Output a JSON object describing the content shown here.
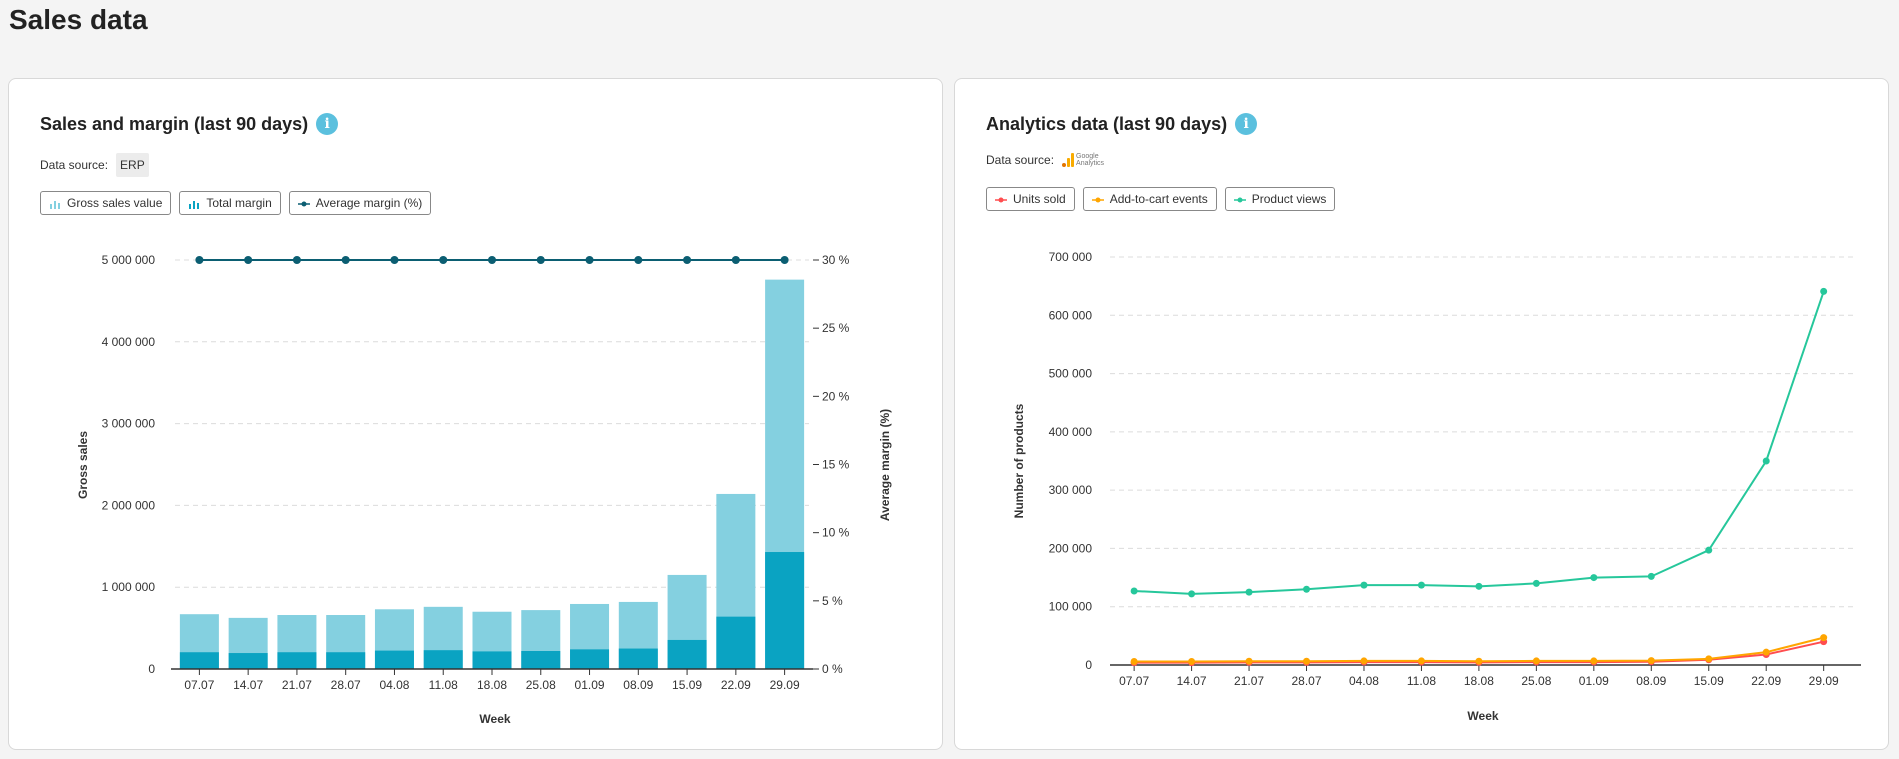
{
  "page": {
    "title": "Sales data"
  },
  "panels": {
    "sales": {
      "title": "Sales and margin (last 90 days)",
      "info_icon": "info-icon",
      "source_label": "Data source:",
      "source_value": "ERP",
      "legend": [
        {
          "label": "Gross sales value",
          "icon": "bar-chart-icon",
          "color": "#84d0e0"
        },
        {
          "label": "Total margin",
          "icon": "bar-chart-icon",
          "color": "#0aa3c2"
        },
        {
          "label": "Average margin (%)",
          "icon": "line-marker-icon",
          "color": "#0b5e72"
        }
      ]
    },
    "analytics": {
      "title": "Analytics data (last 90 days)",
      "info_icon": "info-icon",
      "source_label": "Data source:",
      "source_logo": {
        "line1": "Google",
        "line2": "Analytics"
      },
      "legend": [
        {
          "label": "Units sold",
          "icon": "line-marker-icon",
          "color": "#ff4d4f"
        },
        {
          "label": "Add-to-cart events",
          "icon": "line-marker-icon",
          "color": "#ffa500"
        },
        {
          "label": "Product views",
          "icon": "line-marker-icon",
          "color": "#26c79b"
        }
      ]
    }
  },
  "chart_data": [
    {
      "type": "bar",
      "title": "Sales and margin (last 90 days)",
      "xlabel": "Week",
      "ylabel": "Gross sales",
      "y2label": "Average margin (%)",
      "categories": [
        "07.07",
        "14.07",
        "21.07",
        "28.07",
        "04.08",
        "11.08",
        "18.08",
        "25.08",
        "01.09",
        "08.09",
        "15.09",
        "22.09",
        "29.09"
      ],
      "ylim": [
        0,
        5000000
      ],
      "yticks": [
        0,
        1000000,
        2000000,
        3000000,
        4000000,
        5000000
      ],
      "ytick_labels": [
        "0",
        "1 000 000",
        "2 000 000",
        "3 000 000",
        "4 000 000",
        "5 000 000"
      ],
      "y2lim": [
        0,
        30
      ],
      "y2ticks": [
        0,
        5,
        10,
        15,
        20,
        25,
        30
      ],
      "y2tick_labels": [
        "0 %",
        "5 %",
        "10 %",
        "15 %",
        "20 %",
        "25 %",
        "30 %"
      ],
      "grid": true,
      "series": [
        {
          "name": "Gross sales value",
          "kind": "bar",
          "axis": "left",
          "color": "#84d0e0",
          "values": [
            670000,
            625000,
            660000,
            660000,
            730000,
            760000,
            700000,
            720000,
            795000,
            820000,
            1150000,
            2140000,
            4760000
          ]
        },
        {
          "name": "Total margin",
          "kind": "bar",
          "axis": "left",
          "color": "#0aa3c2",
          "values": [
            205000,
            195000,
            205000,
            205000,
            225000,
            230000,
            215000,
            220000,
            240000,
            250000,
            355000,
            640000,
            1430000
          ]
        },
        {
          "name": "Average margin (%)",
          "kind": "line",
          "axis": "right",
          "color": "#0b5e72",
          "values": [
            30,
            30,
            30,
            30,
            30,
            30,
            30,
            30,
            30,
            30,
            30,
            30,
            30
          ]
        }
      ],
      "legend": "top-left"
    },
    {
      "type": "line",
      "title": "Analytics data (last 90 days)",
      "xlabel": "Week",
      "ylabel": "Number of products",
      "categories": [
        "07.07",
        "14.07",
        "21.07",
        "28.07",
        "04.08",
        "11.08",
        "18.08",
        "25.08",
        "01.09",
        "08.09",
        "15.09",
        "22.09",
        "29.09"
      ],
      "ylim": [
        0,
        700000
      ],
      "yticks": [
        0,
        100000,
        200000,
        300000,
        400000,
        500000,
        600000,
        700000
      ],
      "ytick_labels": [
        "0",
        "100 000",
        "200 000",
        "300 000",
        "400 000",
        "500 000",
        "600 000",
        "700 000"
      ],
      "grid": true,
      "series": [
        {
          "name": "Units sold",
          "color": "#ff4d4f",
          "values": [
            4000,
            4000,
            4500,
            4500,
            5000,
            5000,
            4500,
            5000,
            5000,
            5500,
            9000,
            18000,
            40000
          ]
        },
        {
          "name": "Add-to-cart events",
          "color": "#ffa500",
          "values": [
            6000,
            6000,
            6500,
            6500,
            7000,
            7000,
            6500,
            7000,
            7000,
            7500,
            10500,
            22000,
            47000
          ]
        },
        {
          "name": "Product views",
          "color": "#26c79b",
          "values": [
            127000,
            122000,
            125000,
            130000,
            137000,
            137000,
            135000,
            140000,
            150000,
            152000,
            197000,
            350000,
            641000
          ]
        }
      ],
      "legend": "top-left"
    }
  ]
}
